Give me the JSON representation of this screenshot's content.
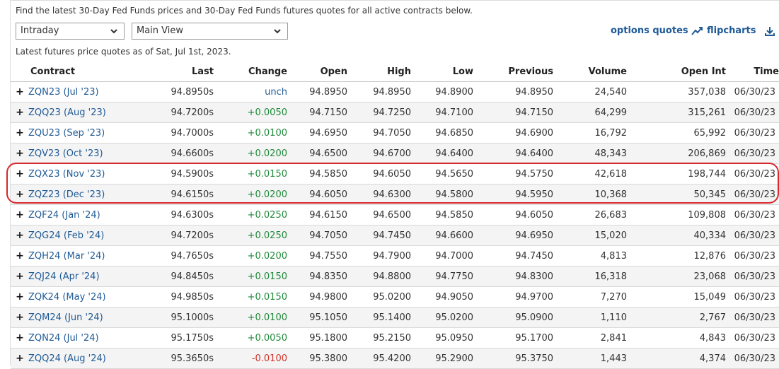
{
  "intro_text": "Find the latest 30-Day Fed Funds prices and 30-Day Fed Funds futures quotes for all active contracts below.",
  "controls": {
    "interval_select": "Intraday",
    "view_select": "Main View",
    "options_quotes": "options quotes",
    "flipcharts": "flipcharts"
  },
  "asof_text": "Latest futures price quotes as of Sat, Jul 1st, 2023.",
  "table": {
    "columns": [
      "Contract",
      "Last",
      "Change",
      "Open",
      "High",
      "Low",
      "Previous",
      "Volume",
      "Open Int",
      "Time"
    ],
    "rows": [
      {
        "contract": "ZQN23 (Jul '23)",
        "last": "94.8950s",
        "change": "unch",
        "open": "94.8950",
        "high": "94.8950",
        "low": "94.8900",
        "previous": "94.8950",
        "volume": "24,540",
        "open_int": "357,038",
        "time": "06/30/23",
        "dir": "neutral"
      },
      {
        "contract": "ZQQ23 (Aug '23)",
        "last": "94.7200s",
        "change": "+0.0050",
        "open": "94.7150",
        "high": "94.7250",
        "low": "94.7100",
        "previous": "94.7150",
        "volume": "64,299",
        "open_int": "315,261",
        "time": "06/30/23",
        "dir": "pos"
      },
      {
        "contract": "ZQU23 (Sep '23)",
        "last": "94.7000s",
        "change": "+0.0100",
        "open": "94.6950",
        "high": "94.7050",
        "low": "94.6850",
        "previous": "94.6900",
        "volume": "16,792",
        "open_int": "65,992",
        "time": "06/30/23",
        "dir": "pos"
      },
      {
        "contract": "ZQV23 (Oct '23)",
        "last": "94.6600s",
        "change": "+0.0200",
        "open": "94.6500",
        "high": "94.6700",
        "low": "94.6400",
        "previous": "94.6400",
        "volume": "48,343",
        "open_int": "206,869",
        "time": "06/30/23",
        "dir": "pos"
      },
      {
        "contract": "ZQX23 (Nov '23)",
        "last": "94.5900s",
        "change": "+0.0150",
        "open": "94.5850",
        "high": "94.6050",
        "low": "94.5650",
        "previous": "94.5750",
        "volume": "42,618",
        "open_int": "198,744",
        "time": "06/30/23",
        "dir": "pos"
      },
      {
        "contract": "ZQZ23 (Dec '23)",
        "last": "94.6150s",
        "change": "+0.0200",
        "open": "94.6050",
        "high": "94.6300",
        "low": "94.5800",
        "previous": "94.5950",
        "volume": "10,368",
        "open_int": "50,345",
        "time": "06/30/23",
        "dir": "pos"
      },
      {
        "contract": "ZQF24 (Jan '24)",
        "last": "94.6300s",
        "change": "+0.0250",
        "open": "94.6150",
        "high": "94.6500",
        "low": "94.5850",
        "previous": "94.6050",
        "volume": "26,683",
        "open_int": "109,808",
        "time": "06/30/23",
        "dir": "pos"
      },
      {
        "contract": "ZQG24 (Feb '24)",
        "last": "94.7200s",
        "change": "+0.0250",
        "open": "94.7050",
        "high": "94.7450",
        "low": "94.6600",
        "previous": "94.6950",
        "volume": "15,020",
        "open_int": "40,334",
        "time": "06/30/23",
        "dir": "pos"
      },
      {
        "contract": "ZQH24 (Mar '24)",
        "last": "94.7650s",
        "change": "+0.0200",
        "open": "94.7550",
        "high": "94.7900",
        "low": "94.7000",
        "previous": "94.7450",
        "volume": "4,813",
        "open_int": "12,876",
        "time": "06/30/23",
        "dir": "pos"
      },
      {
        "contract": "ZQJ24 (Apr '24)",
        "last": "94.8450s",
        "change": "+0.0150",
        "open": "94.8350",
        "high": "94.8800",
        "low": "94.7750",
        "previous": "94.8300",
        "volume": "16,318",
        "open_int": "23,068",
        "time": "06/30/23",
        "dir": "pos"
      },
      {
        "contract": "ZQK24 (May '24)",
        "last": "94.9850s",
        "change": "+0.0150",
        "open": "94.9800",
        "high": "95.0200",
        "low": "94.9050",
        "previous": "94.9700",
        "volume": "7,270",
        "open_int": "15,049",
        "time": "06/30/23",
        "dir": "pos"
      },
      {
        "contract": "ZQM24 (Jun '24)",
        "last": "95.1000s",
        "change": "+0.0100",
        "open": "95.1050",
        "high": "95.1400",
        "low": "95.0200",
        "previous": "95.0900",
        "volume": "1,110",
        "open_int": "2,767",
        "time": "06/30/23",
        "dir": "pos"
      },
      {
        "contract": "ZQN24 (Jul '24)",
        "last": "95.1750s",
        "change": "+0.0050",
        "open": "95.1800",
        "high": "95.2150",
        "low": "95.0950",
        "previous": "95.1700",
        "volume": "2,841",
        "open_int": "4,843",
        "time": "06/30/23",
        "dir": "pos"
      },
      {
        "contract": "ZQQ24 (Aug '24)",
        "last": "95.3650s",
        "change": "-0.0100",
        "open": "95.3800",
        "high": "95.4200",
        "low": "95.2900",
        "previous": "95.3750",
        "volume": "1,443",
        "open_int": "4,374",
        "time": "06/30/23",
        "dir": "neg"
      }
    ]
  },
  "colors": {
    "link": "#1f5a96",
    "positive": "#1f8a3a",
    "negative": "#d0342c",
    "highlight": "#d6282c"
  }
}
